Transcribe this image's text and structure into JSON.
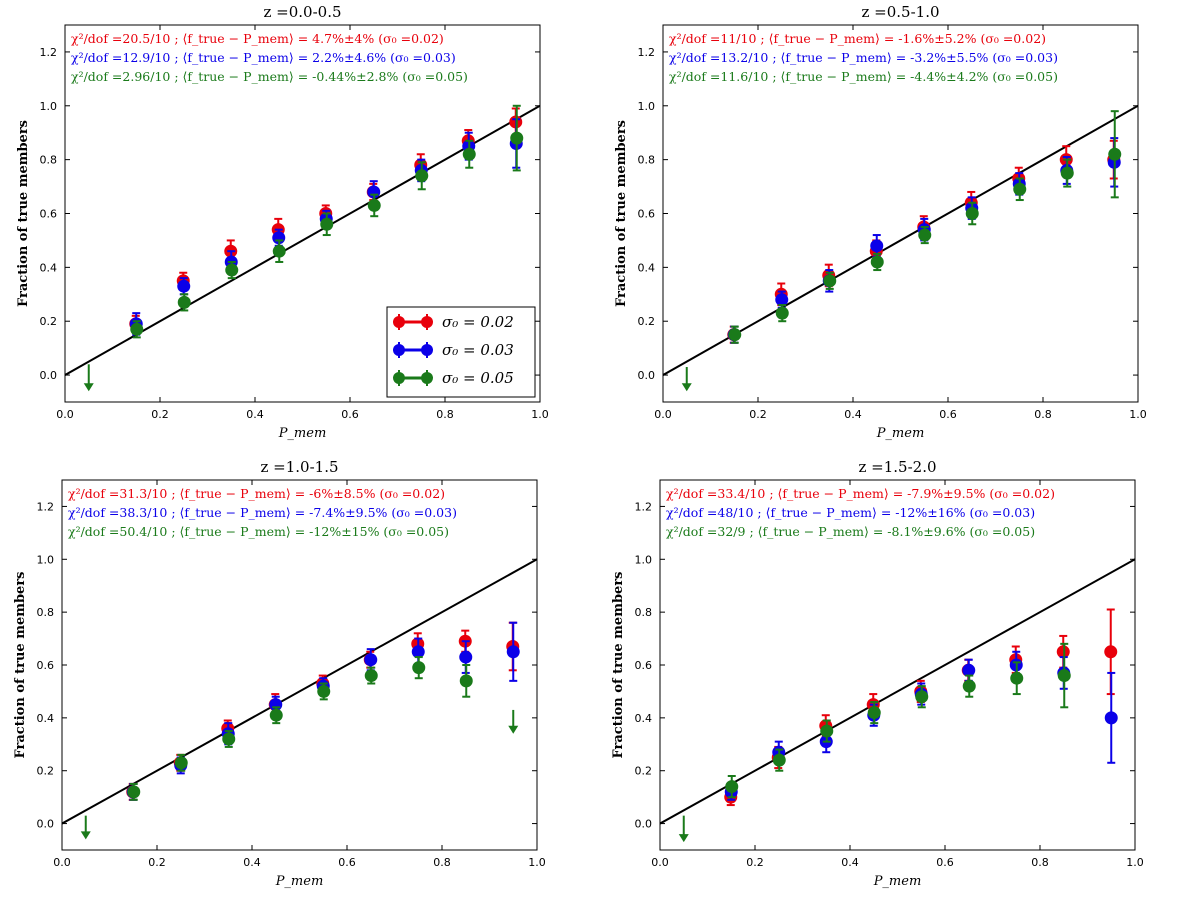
{
  "chart_data": [
    {
      "type": "scatter",
      "title": "z =0.0-0.5",
      "xlabel": "P_mem",
      "ylabel": "Fraction of true members",
      "xlim": [
        0.0,
        1.0
      ],
      "ylim": [
        -0.1,
        1.3
      ],
      "xticks": [
        "0.0",
        "0.2",
        "0.4",
        "0.6",
        "0.8",
        "1.0"
      ],
      "yticks": [
        "0.0",
        "0.2",
        "0.4",
        "0.6",
        "0.8",
        "1.0",
        "1.2"
      ],
      "annotations": [
        {
          "text": "χ²/dof =20.5/10 ; ⟨f_true − P_mem⟩ = 4.7%±4% (σ₀ =0.02)",
          "color": "#e8000b"
        },
        {
          "text": "χ²/dof =12.9/10 ; ⟨f_true − P_mem⟩ = 2.2%±4.6% (σ₀ =0.03)",
          "color": "#0b00e8"
        },
        {
          "text": "χ²/dof =2.96/10 ; ⟨f_true − P_mem⟩ = -0.44%±2.8% (σ₀ =0.05)",
          "color": "#1a7a1a"
        }
      ],
      "legend": {
        "position": "lower-right",
        "entries": [
          "σ₀ = 0.02",
          "σ₀ = 0.03",
          "σ₀ = 0.05"
        ]
      },
      "reference_line": {
        "x": [
          -0.02,
          1.02
        ],
        "y": [
          -0.02,
          1.02
        ]
      },
      "series": [
        {
          "color": "#e8000b",
          "x": [
            0.15,
            0.25,
            0.35,
            0.45,
            0.55,
            0.65,
            0.75,
            0.85,
            0.95
          ],
          "y": [
            0.19,
            0.35,
            0.46,
            0.54,
            0.6,
            0.68,
            0.78,
            0.87,
            0.94
          ],
          "err": [
            0.03,
            0.03,
            0.04,
            0.04,
            0.03,
            0.03,
            0.04,
            0.04,
            0.05
          ]
        },
        {
          "color": "#0b00e8",
          "x": [
            0.15,
            0.25,
            0.35,
            0.45,
            0.55,
            0.65,
            0.75,
            0.85,
            0.95
          ],
          "y": [
            0.19,
            0.33,
            0.42,
            0.51,
            0.58,
            0.68,
            0.76,
            0.85,
            0.86
          ],
          "err": [
            0.04,
            0.03,
            0.04,
            0.03,
            0.03,
            0.04,
            0.04,
            0.05,
            0.09
          ]
        },
        {
          "color": "#1a7a1a",
          "x": [
            0.15,
            0.25,
            0.35,
            0.45,
            0.55,
            0.65,
            0.75,
            0.85,
            0.95
          ],
          "y": [
            0.17,
            0.27,
            0.39,
            0.46,
            0.56,
            0.63,
            0.74,
            0.82,
            0.88
          ],
          "err": [
            0.03,
            0.03,
            0.03,
            0.04,
            0.04,
            0.04,
            0.05,
            0.05,
            0.12
          ]
        }
      ],
      "arrows": [
        {
          "x": 0.05,
          "y_top": 0.04,
          "y_bottom": -0.06,
          "color": "#1a7a1a"
        }
      ]
    },
    {
      "type": "scatter",
      "title": "z =0.5-1.0",
      "xlabel": "P_mem",
      "ylabel": "Fraction of true members",
      "xlim": [
        0.0,
        1.0
      ],
      "ylim": [
        -0.1,
        1.3
      ],
      "xticks": [
        "0.0",
        "0.2",
        "0.4",
        "0.6",
        "0.8",
        "1.0"
      ],
      "yticks": [
        "0.0",
        "0.2",
        "0.4",
        "0.6",
        "0.8",
        "1.0",
        "1.2"
      ],
      "annotations": [
        {
          "text": "χ²/dof =11/10 ; ⟨f_true − P_mem⟩ = -1.6%±5.2% (σ₀ =0.02)",
          "color": "#e8000b"
        },
        {
          "text": "χ²/dof =13.2/10 ; ⟨f_true − P_mem⟩ = -3.2%±5.5% (σ₀ =0.03)",
          "color": "#0b00e8"
        },
        {
          "text": "χ²/dof =11.6/10 ; ⟨f_true − P_mem⟩ = -4.4%±4.2% (σ₀ =0.05)",
          "color": "#1a7a1a"
        }
      ],
      "reference_line": {
        "x": [
          -0.02,
          1.02
        ],
        "y": [
          -0.02,
          1.02
        ]
      },
      "series": [
        {
          "color": "#e8000b",
          "x": [
            0.15,
            0.25,
            0.35,
            0.45,
            0.55,
            0.65,
            0.75,
            0.85,
            0.95
          ],
          "y": [
            0.15,
            0.3,
            0.37,
            0.46,
            0.55,
            0.64,
            0.73,
            0.8,
            0.8
          ],
          "err": [
            0.03,
            0.04,
            0.04,
            0.04,
            0.04,
            0.04,
            0.04,
            0.05,
            0.07
          ]
        },
        {
          "color": "#0b00e8",
          "x": [
            0.15,
            0.25,
            0.35,
            0.45,
            0.55,
            0.65,
            0.75,
            0.85,
            0.95
          ],
          "y": [
            0.15,
            0.28,
            0.35,
            0.48,
            0.54,
            0.62,
            0.71,
            0.76,
            0.79
          ],
          "err": [
            0.03,
            0.03,
            0.04,
            0.04,
            0.04,
            0.04,
            0.04,
            0.05,
            0.09
          ]
        },
        {
          "color": "#1a7a1a",
          "x": [
            0.15,
            0.25,
            0.35,
            0.45,
            0.55,
            0.65,
            0.75,
            0.85,
            0.95
          ],
          "y": [
            0.15,
            0.23,
            0.35,
            0.42,
            0.52,
            0.6,
            0.69,
            0.75,
            0.82
          ],
          "err": [
            0.03,
            0.03,
            0.03,
            0.03,
            0.03,
            0.04,
            0.04,
            0.05,
            0.16
          ]
        }
      ],
      "arrows": [
        {
          "x": 0.05,
          "y_top": 0.03,
          "y_bottom": -0.06,
          "color": "#1a7a1a"
        }
      ]
    },
    {
      "type": "scatter",
      "title": "z =1.0-1.5",
      "xlabel": "P_mem",
      "ylabel": "Fraction of true members",
      "xlim": [
        0.0,
        1.0
      ],
      "ylim": [
        -0.1,
        1.3
      ],
      "xticks": [
        "0.0",
        "0.2",
        "0.4",
        "0.6",
        "0.8",
        "1.0"
      ],
      "yticks": [
        "0.0",
        "0.2",
        "0.4",
        "0.6",
        "0.8",
        "1.0",
        "1.2"
      ],
      "annotations": [
        {
          "text": "χ²/dof =31.3/10 ; ⟨f_true − P_mem⟩ = -6%±8.5% (σ₀ =0.02)",
          "color": "#e8000b"
        },
        {
          "text": "χ²/dof =38.3/10 ; ⟨f_true − P_mem⟩ = -7.4%±9.5% (σ₀ =0.03)",
          "color": "#0b00e8"
        },
        {
          "text": "χ²/dof =50.4/10 ; ⟨f_true − P_mem⟩ = -12%±15% (σ₀ =0.05)",
          "color": "#1a7a1a"
        }
      ],
      "reference_line": {
        "x": [
          -0.02,
          1.02
        ],
        "y": [
          -0.02,
          1.02
        ]
      },
      "series": [
        {
          "color": "#e8000b",
          "x": [
            0.15,
            0.25,
            0.35,
            0.45,
            0.55,
            0.65,
            0.75,
            0.85,
            0.95
          ],
          "y": [
            0.12,
            0.23,
            0.36,
            0.45,
            0.53,
            0.62,
            0.68,
            0.69,
            0.67
          ],
          "err": [
            0.03,
            0.03,
            0.03,
            0.04,
            0.03,
            0.03,
            0.04,
            0.04,
            0.09
          ]
        },
        {
          "color": "#0b00e8",
          "x": [
            0.15,
            0.25,
            0.35,
            0.45,
            0.55,
            0.65,
            0.75,
            0.85,
            0.95
          ],
          "y": [
            0.12,
            0.22,
            0.34,
            0.45,
            0.52,
            0.62,
            0.65,
            0.63,
            0.65
          ],
          "err": [
            0.03,
            0.03,
            0.04,
            0.03,
            0.03,
            0.04,
            0.05,
            0.06,
            0.11
          ]
        },
        {
          "color": "#1a7a1a",
          "x": [
            0.15,
            0.25,
            0.35,
            0.45,
            0.55,
            0.65,
            0.75,
            0.85,
            0.95
          ],
          "y": [
            0.12,
            0.23,
            0.32,
            0.41,
            0.5,
            0.56,
            0.59,
            0.54,
            null
          ],
          "err": [
            0.03,
            0.03,
            0.03,
            0.03,
            0.03,
            0.03,
            0.04,
            0.06,
            null
          ]
        }
      ],
      "arrows": [
        {
          "x": 0.05,
          "y_top": 0.03,
          "y_bottom": -0.06,
          "color": "#1a7a1a"
        },
        {
          "x": 0.95,
          "y_top": 0.43,
          "y_bottom": 0.34,
          "color": "#1a7a1a"
        }
      ]
    },
    {
      "type": "scatter",
      "title": "z =1.5-2.0",
      "xlabel": "P_mem",
      "ylabel": "Fraction of true members",
      "xlim": [
        0.0,
        1.0
      ],
      "ylim": [
        -0.1,
        1.3
      ],
      "xticks": [
        "0.0",
        "0.2",
        "0.4",
        "0.6",
        "0.8",
        "1.0"
      ],
      "yticks": [
        "0.0",
        "0.2",
        "0.4",
        "0.6",
        "0.8",
        "1.0",
        "1.2"
      ],
      "annotations": [
        {
          "text": "χ²/dof =33.4/10 ; ⟨f_true − P_mem⟩ = -7.9%±9.5% (σ₀ =0.02)",
          "color": "#e8000b"
        },
        {
          "text": "χ²/dof =48/10 ; ⟨f_true − P_mem⟩ = -12%±16% (σ₀ =0.03)",
          "color": "#0b00e8"
        },
        {
          "text": "χ²/dof =32/9 ; ⟨f_true − P_mem⟩ = -8.1%±9.6% (σ₀ =0.05)",
          "color": "#1a7a1a"
        }
      ],
      "reference_line": {
        "x": [
          -0.02,
          1.02
        ],
        "y": [
          -0.02,
          1.02
        ]
      },
      "series": [
        {
          "color": "#e8000b",
          "x": [
            0.15,
            0.25,
            0.35,
            0.45,
            0.55,
            0.65,
            0.75,
            0.85,
            0.95
          ],
          "y": [
            0.1,
            0.25,
            0.37,
            0.45,
            0.5,
            0.58,
            0.62,
            0.65,
            0.65
          ],
          "err": [
            0.03,
            0.04,
            0.04,
            0.04,
            0.04,
            0.04,
            0.05,
            0.06,
            0.16
          ]
        },
        {
          "color": "#0b00e8",
          "x": [
            0.15,
            0.25,
            0.35,
            0.45,
            0.55,
            0.65,
            0.75,
            0.85,
            0.95
          ],
          "y": [
            0.12,
            0.27,
            0.31,
            0.41,
            0.49,
            0.58,
            0.6,
            0.57,
            0.4
          ],
          "err": [
            0.03,
            0.04,
            0.04,
            0.04,
            0.04,
            0.04,
            0.05,
            0.06,
            0.17
          ]
        },
        {
          "color": "#1a7a1a",
          "x": [
            0.15,
            0.25,
            0.35,
            0.45,
            0.55,
            0.65,
            0.75,
            0.85,
            0.95
          ],
          "y": [
            0.14,
            0.24,
            0.35,
            0.42,
            0.48,
            0.52,
            0.55,
            0.56,
            null
          ],
          "err": [
            0.04,
            0.04,
            0.04,
            0.04,
            0.04,
            0.04,
            0.06,
            0.12,
            null
          ]
        }
      ],
      "arrows": [
        {
          "x": 0.05,
          "y_top": 0.03,
          "y_bottom": -0.07,
          "color": "#1a7a1a"
        }
      ]
    }
  ]
}
